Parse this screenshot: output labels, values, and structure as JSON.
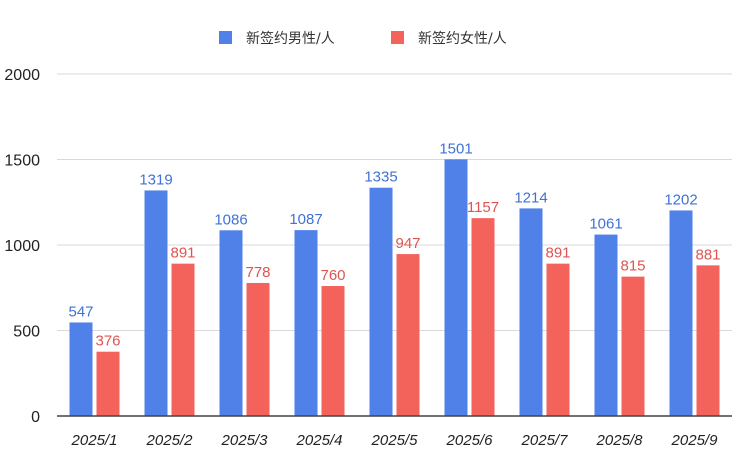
{
  "chart_data": {
    "type": "bar",
    "title": "",
    "xlabel": "",
    "ylabel": "",
    "categories": [
      "2025/1",
      "2025/2",
      "2025/3",
      "2025/4",
      "2025/5",
      "2025/6",
      "2025/7",
      "2025/8",
      "2025/9"
    ],
    "series": [
      {
        "name": "新签约男性/人",
        "color": "#4f81e9",
        "label_color": "#3f72d6",
        "values": [
          547,
          1319,
          1086,
          1087,
          1335,
          1501,
          1214,
          1061,
          1202
        ]
      },
      {
        "name": "新签约女性/人",
        "color": "#f4625c",
        "label_color": "#e0544f",
        "values": [
          376,
          891,
          778,
          760,
          947,
          1157,
          891,
          815,
          881
        ]
      }
    ],
    "ylim": [
      0,
      2000
    ],
    "yticks": [
      0,
      500,
      1000,
      1500,
      2000
    ],
    "grid": true,
    "legend_position": "top-center",
    "data_labels": true
  }
}
